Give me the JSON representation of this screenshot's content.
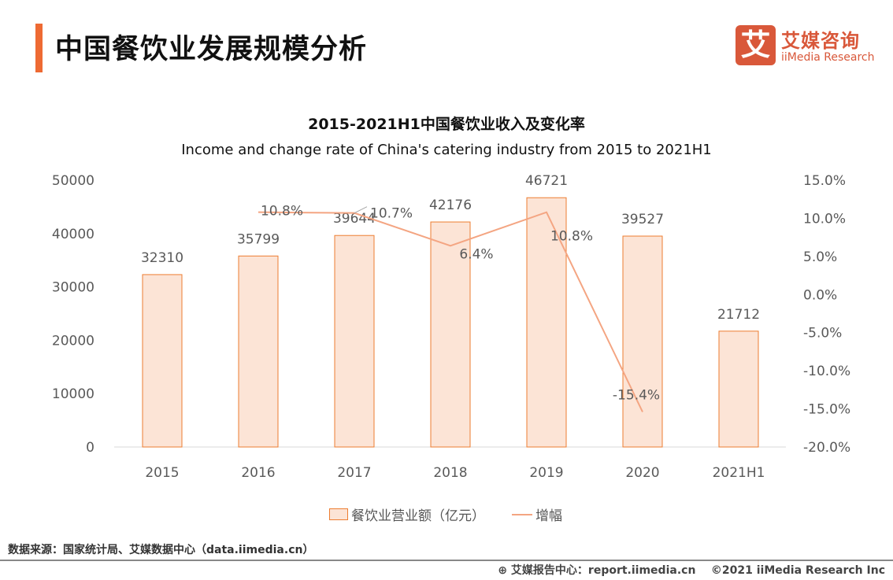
{
  "header": {
    "title": "中国餐饮业发展规模分析",
    "logo_cn": "艾媒咨询",
    "logo_en": "iiMedia Research",
    "logo_glyph": "艾"
  },
  "colors": {
    "accent": "#ee6a33",
    "bar_fill": "#fce4d6",
    "bar_stroke": "#ed7d31",
    "line": "#f4a582"
  },
  "chart_data": {
    "type": "bar+line",
    "title": "2015-2021H1中国餐饮业收入及变化率",
    "subtitle": "Income and change rate of China's catering industry from 2015 to 2021H1",
    "categories": [
      "2015",
      "2016",
      "2017",
      "2018",
      "2019",
      "2020",
      "2021H1"
    ],
    "series": [
      {
        "name": "餐饮业营业额（亿元）",
        "type": "bar",
        "axis": "left",
        "values": [
          32310,
          35799,
          39644,
          42176,
          46721,
          39527,
          21712
        ],
        "labels": [
          "32310",
          "35799",
          "39644",
          "42176",
          "46721",
          "39527",
          "21712"
        ]
      },
      {
        "name": "增幅",
        "type": "line",
        "axis": "right",
        "values": [
          null,
          10.8,
          10.7,
          6.4,
          10.8,
          -15.4,
          null
        ],
        "labels": [
          "",
          "10.8%",
          "10.7%",
          "6.4%",
          "10.8%",
          "-15.4%",
          ""
        ]
      }
    ],
    "left_axis": {
      "range": [
        0,
        50000
      ],
      "ticks": [
        "0",
        "10000",
        "20000",
        "30000",
        "40000",
        "50000"
      ]
    },
    "right_axis": {
      "range": [
        -20,
        15
      ],
      "ticks": [
        "-20.0%",
        "-15.0%",
        "-10.0%",
        "-5.0%",
        "0.0%",
        "5.0%",
        "10.0%",
        "15.0%"
      ]
    },
    "grid": false,
    "legend": "bottom"
  },
  "footer": {
    "source": "数据来源：国家统计局、艾媒数据中心（data.iimedia.cn）",
    "report": "艾媒报告中心：report.iimedia.cn",
    "copyright": "©2021  iiMedia Research  Inc"
  }
}
